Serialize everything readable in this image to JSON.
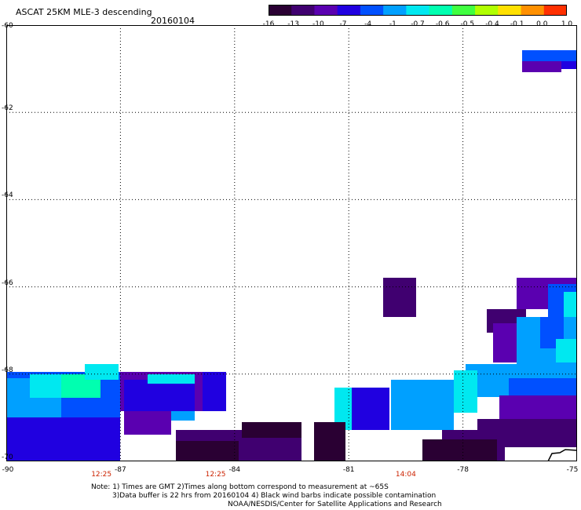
{
  "title": "ASCAT 25KM MLE-3 descending",
  "date": "20160104",
  "colorbar": {
    "labels": [
      "-16",
      "-13",
      "-10",
      "-7",
      "-4",
      "-1",
      "-0.7",
      "-0.6",
      "-0.5",
      "-0.4",
      "-0.1",
      "0.0",
      "1.0"
    ],
    "colors": [
      "#2a0033",
      "#400070",
      "#5a00b0",
      "#2000e0",
      "#0050ff",
      "#00a0ff",
      "#00e8f0",
      "#00ffb0",
      "#40ff40",
      "#b0ff00",
      "#ffe000",
      "#ff9000",
      "#ff3000"
    ]
  },
  "map": {
    "lat_labels": [
      "-60",
      "-62",
      "-64",
      "-66",
      "-68",
      "-70"
    ],
    "lon_labels": [
      "-90",
      "-87",
      "-84",
      "-81",
      "-78",
      "-75"
    ],
    "time_labels": [
      {
        "lon": -87.5,
        "text": "12:25"
      },
      {
        "lon": -84.5,
        "text": "12:25"
      },
      {
        "lon": -79.5,
        "text": "14:04"
      }
    ]
  },
  "notes": {
    "line1": "Note: 1) Times are GMT 2)Times along bottom correspond to measurement at ~65S",
    "line2": "3)Data buffer is 22 hrs from 20160104 4) Black wind barbs indicate possible contamination",
    "line3": "NOAA/NESDIS/Center for Satellite Applications and Research"
  }
}
